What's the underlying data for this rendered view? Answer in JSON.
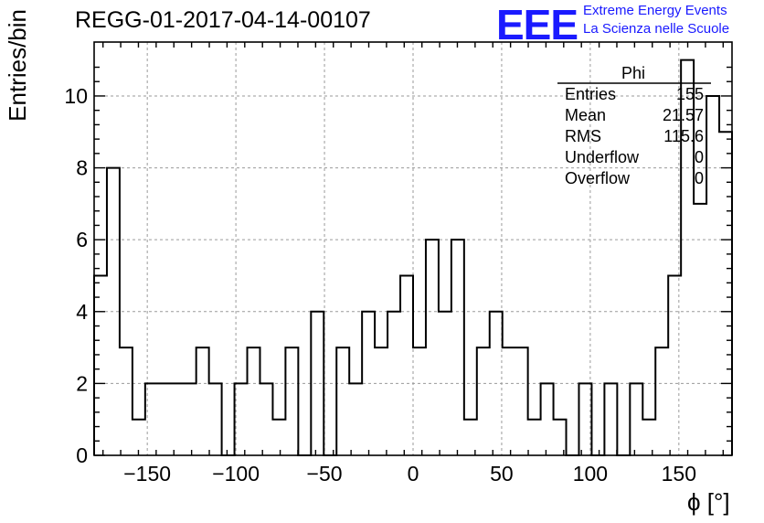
{
  "run_title": "REGG-01-2017-04-14-00107",
  "logo": {
    "mark": "EEE",
    "line1": "Extreme Energy Events",
    "line2": "La Scienza nelle Scuole"
  },
  "stats": {
    "title": "Phi",
    "rows": [
      {
        "key": "Entries",
        "value": "155"
      },
      {
        "key": "Mean",
        "value": "21.57"
      },
      {
        "key": "RMS",
        "value": "115.6"
      },
      {
        "key": "Underflow",
        "value": "0"
      },
      {
        "key": "Overflow",
        "value": "0"
      }
    ]
  },
  "chart_data": {
    "type": "bar",
    "histogram": true,
    "title": "REGG-01-2017-04-14-00107",
    "xlabel": "ϕ [°]",
    "ylabel": "Entries/bin",
    "xlim": [
      -180,
      180
    ],
    "ylim": [
      0,
      11.5
    ],
    "bin_width": 7.2,
    "bin_edges_start": -180,
    "x_ticks": [
      -150,
      -100,
      -50,
      0,
      50,
      100,
      150
    ],
    "x_tick_labels": [
      "−150",
      "−100",
      "−50",
      "0",
      "50",
      "100",
      "150"
    ],
    "y_ticks": [
      0,
      2,
      4,
      6,
      8,
      10
    ],
    "y_tick_labels": [
      "0",
      "2",
      "4",
      "6",
      "8",
      "10"
    ],
    "grid": true,
    "values": [
      5,
      8,
      3,
      1,
      2,
      2,
      2,
      2,
      3,
      2,
      0,
      2,
      3,
      2,
      1,
      3,
      0,
      4,
      0,
      3,
      2,
      4,
      3,
      4,
      5,
      3,
      6,
      4,
      6,
      1,
      3,
      4,
      3,
      3,
      1,
      2,
      1,
      0,
      2,
      0,
      2,
      0,
      2,
      1,
      3,
      5,
      11,
      7,
      10,
      9
    ]
  }
}
